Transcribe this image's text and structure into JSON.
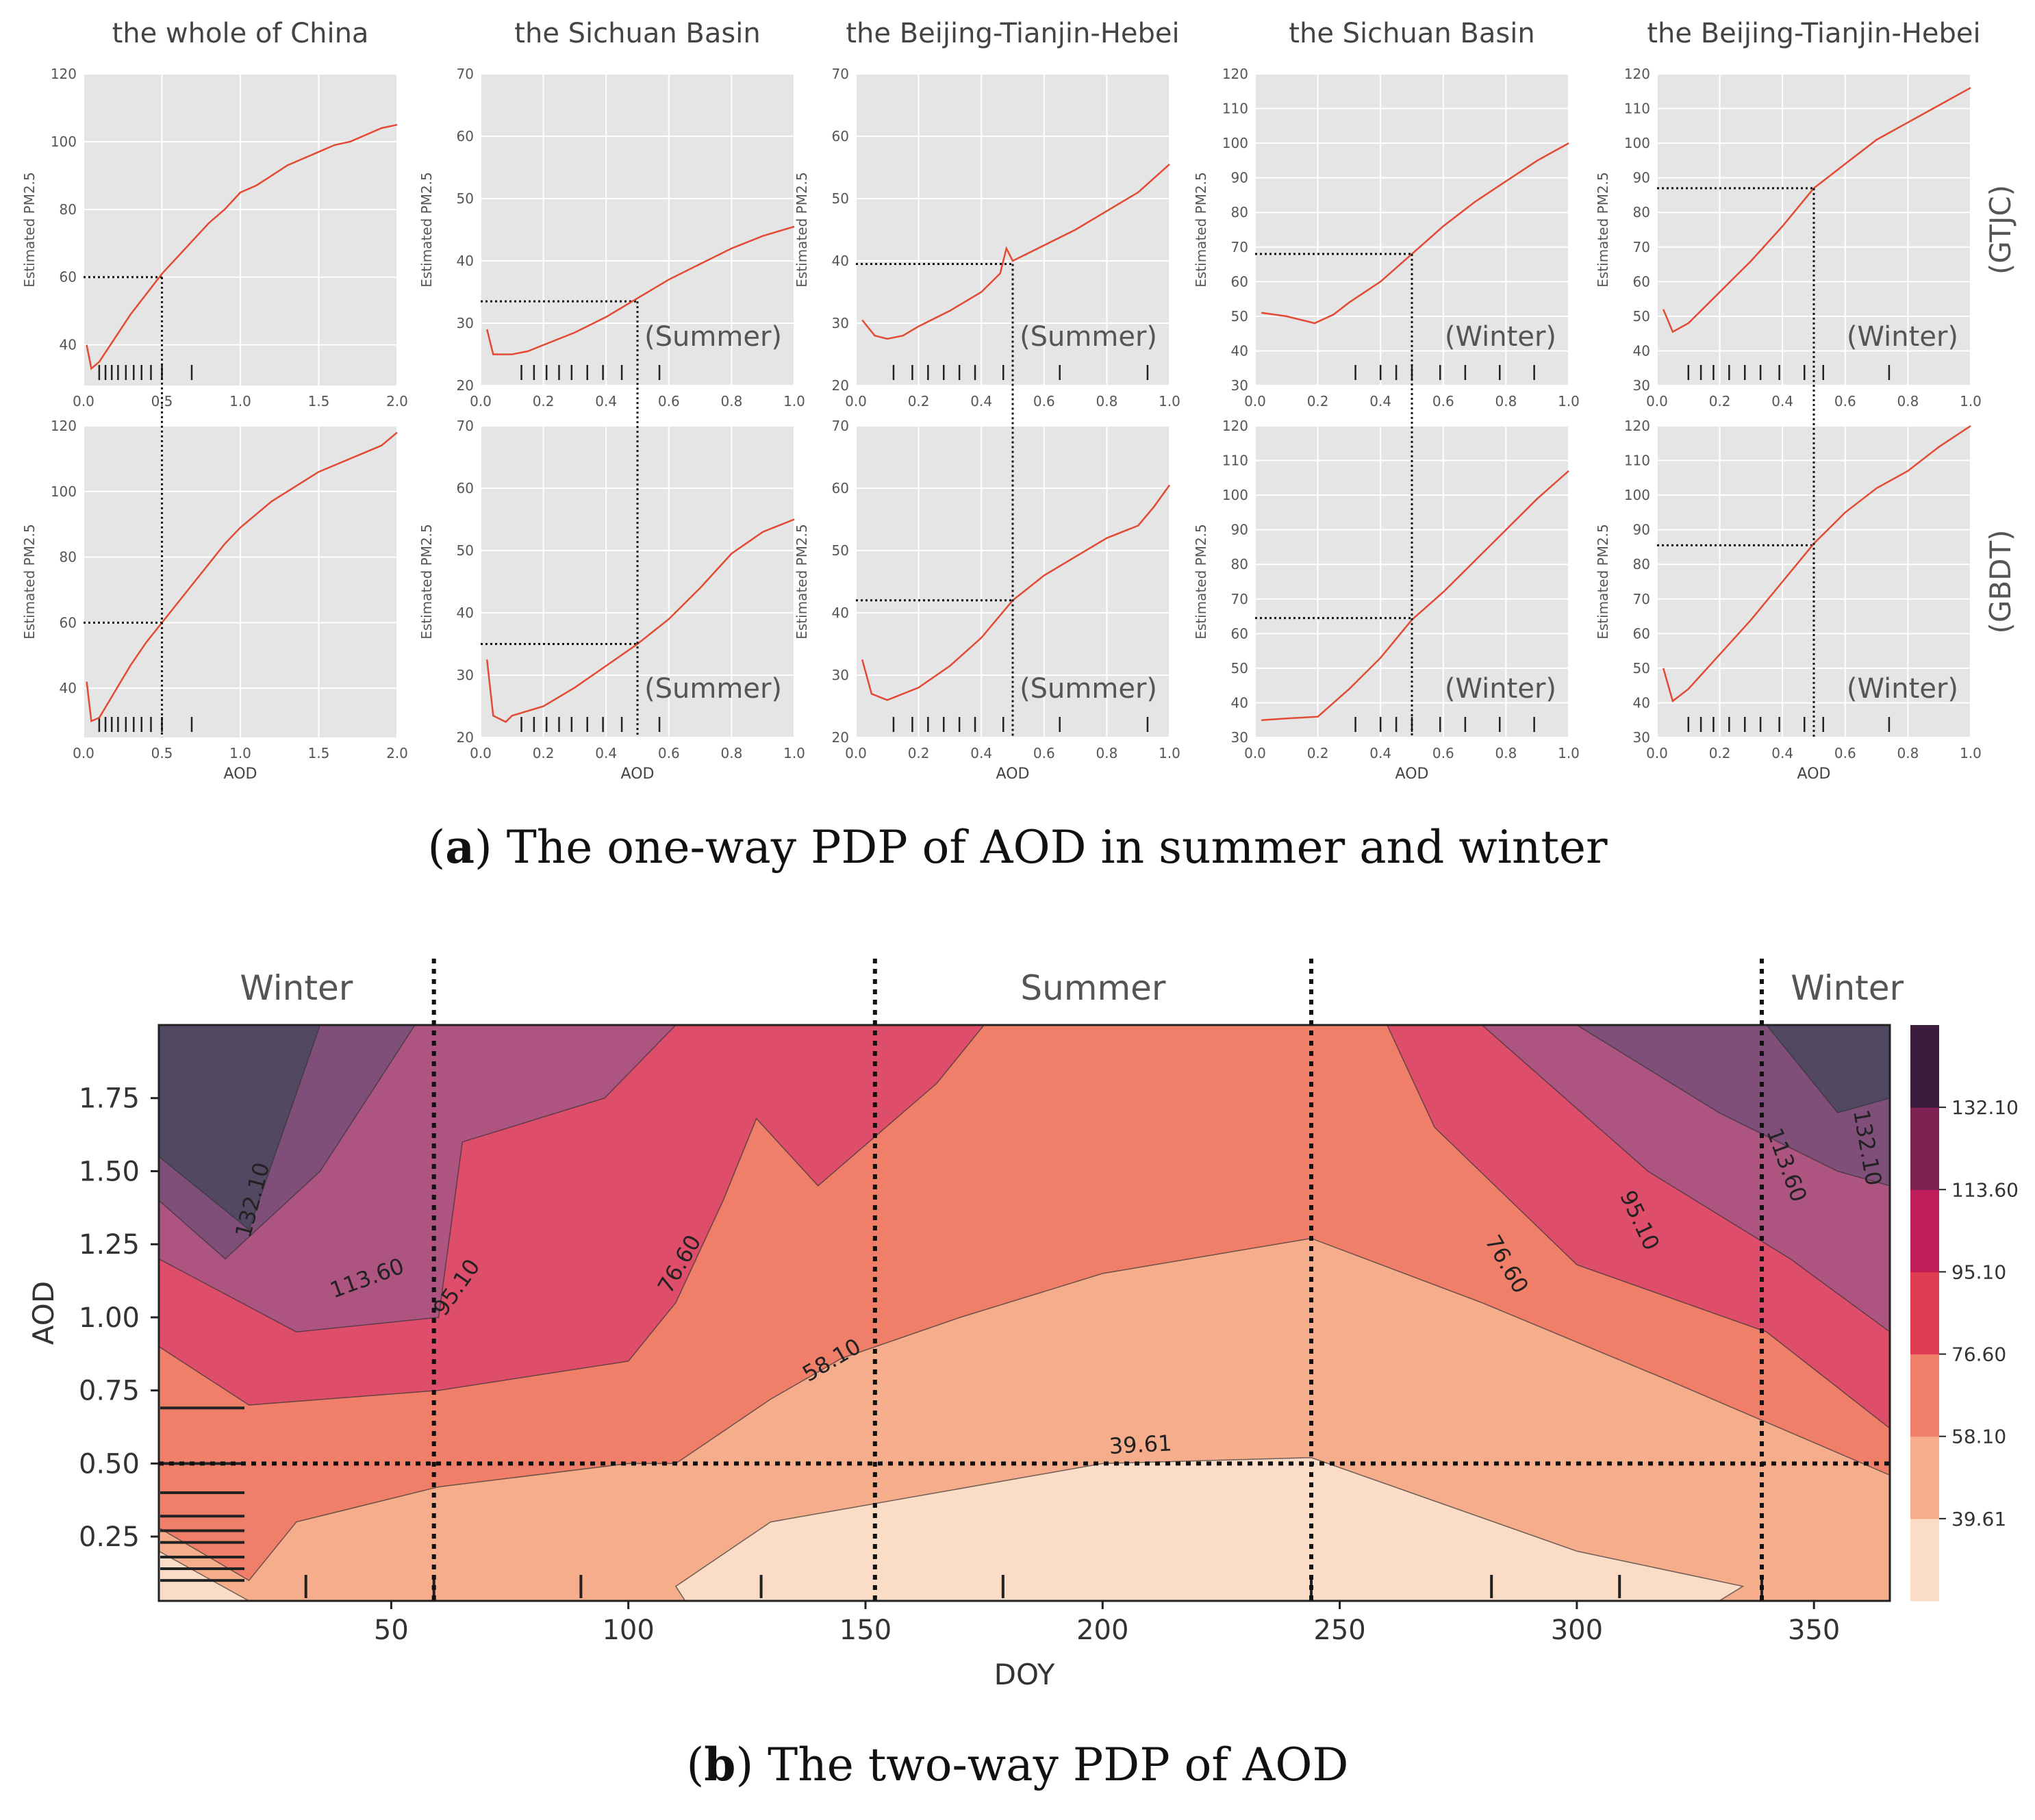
{
  "caption_a": {
    "letter": "a",
    "text": "The one-way PDP of AOD in summer and winter"
  },
  "caption_b": {
    "letter": "b",
    "text": "The two-way PDP of AOD"
  },
  "row_labels": [
    "(GTJC)",
    "(GBDT)"
  ],
  "colors": {
    "panel_bg": "#e5e5e5",
    "line": "#e24a33",
    "grid": "#ffffff"
  },
  "chart_data": [
    {
      "type": "line-grid",
      "panel_titles": [
        "the whole of China",
        "the Sichuan Basin",
        "the Beijing-Tianjin-Hebei",
        "the Sichuan Basin",
        "the Beijing-Tianjin-Hebei"
      ],
      "ylabel": "Estimated PM2.5",
      "xlabel": "AOD",
      "rows": [
        [
          {
            "xlim": [
              0,
              2
            ],
            "ylim": [
              28,
              120
            ],
            "xticks": [
              0,
              0.5,
              1.0,
              1.5,
              2.0
            ],
            "xtick_labels": [
              "0.0",
              "0.5",
              "1.0",
              "1.5",
              "2.0"
            ],
            "yticks": [
              40,
              60,
              80,
              100,
              120
            ],
            "season": "",
            "x": [
              0.02,
              0.05,
              0.1,
              0.2,
              0.3,
              0.4,
              0.5,
              0.6,
              0.7,
              0.8,
              0.9,
              1.0,
              1.1,
              1.2,
              1.3,
              1.4,
              1.5,
              1.6,
              1.7,
              1.8,
              1.9,
              2.0
            ],
            "y": [
              40,
              33,
              35,
              42,
              49,
              55,
              61,
              66,
              71,
              76,
              80,
              85,
              87,
              90,
              93,
              95,
              97,
              99,
              100,
              102,
              104,
              105
            ],
            "ref_x": 0.5,
            "ref_y": 60,
            "rug": [
              0.1,
              0.14,
              0.18,
              0.22,
              0.27,
              0.32,
              0.37,
              0.43,
              0.5,
              0.69
            ]
          },
          {
            "xlim": [
              0,
              1
            ],
            "ylim": [
              20,
              70
            ],
            "xticks": [
              0,
              0.2,
              0.4,
              0.6,
              0.8,
              1.0
            ],
            "xtick_labels": [
              "0.0",
              "0.2",
              "0.4",
              "0.6",
              "0.8",
              "1.0"
            ],
            "yticks": [
              20,
              30,
              40,
              50,
              60,
              70
            ],
            "season": "(Summer)",
            "x": [
              0.02,
              0.04,
              0.1,
              0.15,
              0.2,
              0.3,
              0.4,
              0.5,
              0.6,
              0.7,
              0.8,
              0.9,
              1.0
            ],
            "y": [
              29,
              25,
              25,
              25.5,
              26.5,
              28.5,
              31,
              34,
              37,
              39.5,
              42,
              44,
              45.5
            ],
            "ref_x": 0.5,
            "ref_y": 33.5,
            "rug": [
              0.13,
              0.17,
              0.21,
              0.25,
              0.29,
              0.34,
              0.39,
              0.45,
              0.57
            ]
          },
          {
            "xlim": [
              0,
              1
            ],
            "ylim": [
              20,
              70
            ],
            "xticks": [
              0,
              0.2,
              0.4,
              0.6,
              0.8,
              1.0
            ],
            "xtick_labels": [
              "0.0",
              "0.2",
              "0.4",
              "0.6",
              "0.8",
              "1.0"
            ],
            "yticks": [
              20,
              30,
              40,
              50,
              60,
              70
            ],
            "season": "(Summer)",
            "x": [
              0.02,
              0.06,
              0.1,
              0.15,
              0.2,
              0.3,
              0.4,
              0.46,
              0.48,
              0.5,
              0.6,
              0.7,
              0.8,
              0.9,
              1.0
            ],
            "y": [
              30.5,
              28,
              27.5,
              28,
              29.5,
              32,
              35,
              38,
              42,
              40,
              42.5,
              45,
              48,
              51,
              55.5
            ],
            "ref_x": 0.5,
            "ref_y": 39.5,
            "rug": [
              0.12,
              0.18,
              0.23,
              0.28,
              0.33,
              0.38,
              0.47,
              0.65,
              0.93
            ]
          },
          {
            "xlim": [
              0,
              1
            ],
            "ylim": [
              30,
              120
            ],
            "xticks": [
              0,
              0.2,
              0.4,
              0.6,
              0.8,
              1.0
            ],
            "xtick_labels": [
              "0.0",
              "0.2",
              "0.4",
              "0.6",
              "0.8",
              "1.0"
            ],
            "yticks": [
              30,
              40,
              50,
              60,
              70,
              80,
              90,
              100,
              110,
              120
            ],
            "season": "(Winter)",
            "x": [
              0.02,
              0.1,
              0.19,
              0.25,
              0.3,
              0.4,
              0.5,
              0.6,
              0.7,
              0.8,
              0.9,
              1.0
            ],
            "y": [
              51,
              50,
              48,
              50.5,
              54,
              60,
              68,
              76,
              83,
              89,
              95,
              100
            ],
            "ref_x": 0.5,
            "ref_y": 68,
            "rug": [
              0.32,
              0.4,
              0.45,
              0.5,
              0.59,
              0.67,
              0.78,
              0.89
            ]
          },
          {
            "xlim": [
              0,
              1
            ],
            "ylim": [
              30,
              120
            ],
            "xticks": [
              0,
              0.2,
              0.4,
              0.6,
              0.8,
              1.0
            ],
            "xtick_labels": [
              "0.0",
              "0.2",
              "0.4",
              "0.6",
              "0.8",
              "1.0"
            ],
            "yticks": [
              30,
              40,
              50,
              60,
              70,
              80,
              90,
              100,
              110,
              120
            ],
            "season": "(Winter)",
            "x": [
              0.02,
              0.05,
              0.1,
              0.2,
              0.3,
              0.4,
              0.5,
              0.6,
              0.7,
              0.8,
              0.9,
              1.0
            ],
            "y": [
              52,
              45.5,
              48,
              57,
              66,
              76,
              87,
              94,
              101,
              106,
              111,
              116
            ],
            "ref_x": 0.5,
            "ref_y": 87,
            "rug": [
              0.1,
              0.14,
              0.18,
              0.23,
              0.28,
              0.33,
              0.39,
              0.47,
              0.53,
              0.74
            ]
          }
        ],
        [
          {
            "xlim": [
              0,
              2
            ],
            "ylim": [
              25,
              120
            ],
            "xticks": [
              0,
              0.5,
              1.0,
              1.5,
              2.0
            ],
            "xtick_labels": [
              "0.0",
              "0.5",
              "1.0",
              "1.5",
              "2.0"
            ],
            "yticks": [
              40,
              60,
              80,
              100,
              120
            ],
            "season": "",
            "x": [
              0.02,
              0.05,
              0.1,
              0.2,
              0.3,
              0.4,
              0.5,
              0.6,
              0.7,
              0.8,
              0.9,
              1.0,
              1.1,
              1.2,
              1.3,
              1.4,
              1.5,
              1.6,
              1.7,
              1.8,
              1.9,
              2.0
            ],
            "y": [
              42,
              30,
              31,
              39,
              47,
              54,
              60,
              66,
              72,
              78,
              84,
              89,
              93,
              97,
              100,
              103,
              106,
              108,
              110,
              112,
              114,
              118
            ],
            "ref_x": 0.5,
            "ref_y": 60,
            "rug": [
              0.1,
              0.14,
              0.18,
              0.22,
              0.27,
              0.32,
              0.37,
              0.43,
              0.5,
              0.69
            ]
          },
          {
            "xlim": [
              0,
              1
            ],
            "ylim": [
              20,
              70
            ],
            "xticks": [
              0,
              0.2,
              0.4,
              0.6,
              0.8,
              1.0
            ],
            "xtick_labels": [
              "0.0",
              "0.2",
              "0.4",
              "0.6",
              "0.8",
              "1.0"
            ],
            "yticks": [
              20,
              30,
              40,
              50,
              60,
              70
            ],
            "season": "(Summer)",
            "x": [
              0.02,
              0.04,
              0.08,
              0.1,
              0.2,
              0.3,
              0.4,
              0.5,
              0.6,
              0.7,
              0.8,
              0.9,
              1.0
            ],
            "y": [
              32.5,
              23.5,
              22.5,
              23.5,
              25,
              28,
              31.5,
              35,
              39,
              44,
              49.5,
              53,
              55
            ],
            "ref_x": 0.5,
            "ref_y": 35,
            "rug": [
              0.13,
              0.17,
              0.21,
              0.25,
              0.29,
              0.34,
              0.39,
              0.45,
              0.57
            ]
          },
          {
            "xlim": [
              0,
              1
            ],
            "ylim": [
              20,
              70
            ],
            "xticks": [
              0,
              0.2,
              0.4,
              0.6,
              0.8,
              1.0
            ],
            "xtick_labels": [
              "0.0",
              "0.2",
              "0.4",
              "0.6",
              "0.8",
              "1.0"
            ],
            "yticks": [
              20,
              30,
              40,
              50,
              60,
              70
            ],
            "season": "(Summer)",
            "x": [
              0.02,
              0.05,
              0.1,
              0.2,
              0.3,
              0.4,
              0.5,
              0.6,
              0.7,
              0.8,
              0.9,
              0.95,
              1.0
            ],
            "y": [
              32.5,
              27,
              26,
              28,
              31.5,
              36,
              42,
              46,
              49,
              52,
              54,
              57,
              60.5
            ],
            "ref_x": 0.5,
            "ref_y": 42,
            "rug": [
              0.12,
              0.18,
              0.23,
              0.28,
              0.33,
              0.38,
              0.47,
              0.65,
              0.93
            ]
          },
          {
            "xlim": [
              0,
              1
            ],
            "ylim": [
              30,
              120
            ],
            "xticks": [
              0,
              0.2,
              0.4,
              0.6,
              0.8,
              1.0
            ],
            "xtick_labels": [
              "0.0",
              "0.2",
              "0.4",
              "0.6",
              "0.8",
              "1.0"
            ],
            "yticks": [
              30,
              40,
              50,
              60,
              70,
              80,
              90,
              100,
              110,
              120
            ],
            "season": "(Winter)",
            "x": [
              0.02,
              0.1,
              0.2,
              0.3,
              0.4,
              0.5,
              0.6,
              0.7,
              0.8,
              0.9,
              1.0
            ],
            "y": [
              35,
              35.5,
              36,
              44,
              53,
              64,
              72,
              81,
              90,
              99,
              107
            ],
            "ref_x": 0.5,
            "ref_y": 64.5,
            "rug": [
              0.32,
              0.4,
              0.45,
              0.5,
              0.59,
              0.67,
              0.78,
              0.89
            ]
          },
          {
            "xlim": [
              0,
              1
            ],
            "ylim": [
              30,
              120
            ],
            "xticks": [
              0,
              0.2,
              0.4,
              0.6,
              0.8,
              1.0
            ],
            "xtick_labels": [
              "0.0",
              "0.2",
              "0.4",
              "0.6",
              "0.8",
              "1.0"
            ],
            "yticks": [
              30,
              40,
              50,
              60,
              70,
              80,
              90,
              100,
              110,
              120
            ],
            "season": "(Winter)",
            "x": [
              0.02,
              0.05,
              0.1,
              0.2,
              0.3,
              0.4,
              0.5,
              0.6,
              0.7,
              0.8,
              0.9,
              1.0
            ],
            "y": [
              50,
              40.5,
              44,
              54,
              64,
              75,
              86,
              95,
              102,
              107,
              114,
              120
            ],
            "ref_x": 0.5,
            "ref_y": 85.5,
            "rug": [
              0.1,
              0.14,
              0.18,
              0.23,
              0.28,
              0.33,
              0.39,
              0.47,
              0.53,
              0.74
            ]
          }
        ]
      ]
    },
    {
      "type": "contour",
      "xlabel": "DOY",
      "ylabel": "AOD",
      "xlim": [
        1,
        366
      ],
      "ylim": [
        0.03,
        2.0
      ],
      "xticks": [
        50,
        100,
        150,
        200,
        250,
        300,
        350
      ],
      "yticks": [
        0.25,
        0.5,
        0.75,
        1.0,
        1.25,
        1.5,
        1.75
      ],
      "ytick_labels": [
        "0.25",
        "0.50",
        "0.75",
        "1.00",
        "1.25",
        "1.50",
        "1.75"
      ],
      "levels": [
        39.61,
        58.1,
        76.6,
        95.1,
        113.6,
        132.1
      ],
      "level_labels": [
        "39.61",
        "58.10",
        "76.60",
        "95.10",
        "113.60",
        "132.10"
      ],
      "level_colors": [
        "#fadcc7",
        "#f6ad8c",
        "#f07f6a",
        "#de4e6a",
        "#ad5480",
        "#7f4f79",
        "#524862"
      ],
      "colorbar_colors": [
        "#fadcc7",
        "#f6ad8c",
        "#f07f6a",
        "#e03c52",
        "#c01d5b",
        "#7d2252",
        "#3b1c3d"
      ],
      "season_labels": [
        {
          "text": "Winter",
          "x": 30
        },
        {
          "text": "Summer",
          "x": 198
        },
        {
          "text": "Winter",
          "x": 357
        }
      ],
      "season_bounds": [
        59,
        152,
        244,
        339
      ],
      "ref_aod": 0.5,
      "doy_rug": [
        32,
        59,
        90,
        128,
        179,
        244,
        282,
        309,
        339
      ],
      "aod_rug": [
        0.1,
        0.14,
        0.18,
        0.23,
        0.27,
        0.32,
        0.4,
        0.5,
        0.69
      ],
      "contour_labels": [
        {
          "text": "132.10",
          "x": 21,
          "y": 1.4,
          "rot": -75
        },
        {
          "text": "113.60",
          "x": 45,
          "y": 1.13,
          "rot": -20
        },
        {
          "text": "95.10",
          "x": 64,
          "y": 1.1,
          "rot": -55
        },
        {
          "text": "76.60",
          "x": 111,
          "y": 1.18,
          "rot": -60
        },
        {
          "text": "58.10",
          "x": 143,
          "y": 0.85,
          "rot": -30
        },
        {
          "text": "39.61",
          "x": 208,
          "y": 0.56,
          "rot": -3
        },
        {
          "text": "76.60",
          "x": 285,
          "y": 1.18,
          "rot": 60
        },
        {
          "text": "95.10",
          "x": 313,
          "y": 1.33,
          "rot": 65
        },
        {
          "text": "113.60",
          "x": 344,
          "y": 1.52,
          "rot": 70
        },
        {
          "text": "132.10",
          "x": 361,
          "y": 1.58,
          "rot": 80
        }
      ]
    }
  ]
}
